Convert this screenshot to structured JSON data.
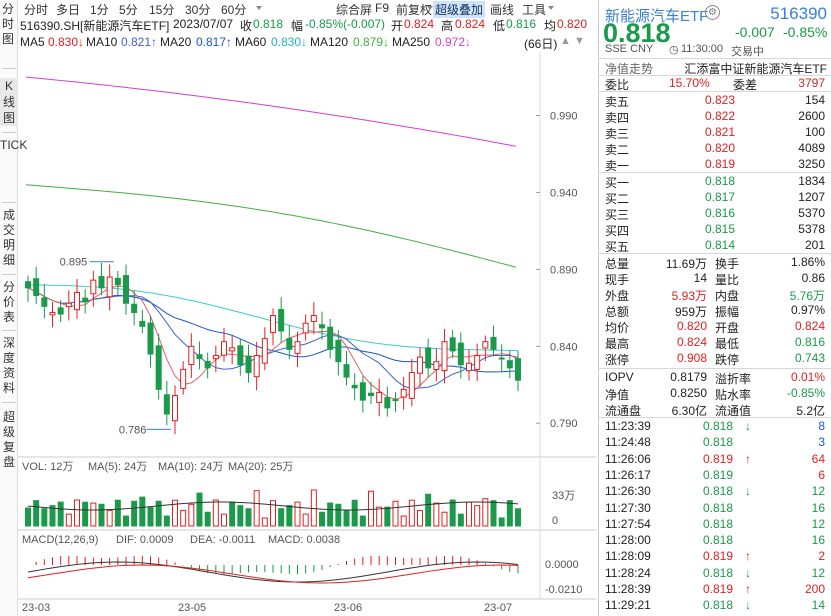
{
  "leftnav": [
    "分时图",
    "K线图",
    "TICK",
    "成交明细",
    "分价表",
    "深度资料",
    "超级复盘"
  ],
  "toolbar": {
    "periods": [
      "分时",
      "多日",
      "1分",
      "5分",
      "15分",
      "30分",
      "60分"
    ],
    "tools": [
      "综合屏",
      "F9",
      "前复权",
      "超级叠加",
      "画线",
      "工具"
    ],
    "active_tool": "超级叠加"
  },
  "info": {
    "symbol": "516390.SH[新能源汽车ETF]",
    "date": "2023/07/07",
    "close_label": "收",
    "close": "0.818",
    "chg_label": "幅",
    "chg": "-0.85%(-0.007)",
    "open_label": "开",
    "open": "0.824",
    "high_label": "高",
    "high": "0.824",
    "low_label": "低",
    "low": "0.816",
    "avg_label": "均",
    "avg": "0.820"
  },
  "ma": {
    "ma5": "MA5",
    "ma5_val": "0.830↓",
    "ma10": "MA10",
    "ma10_val": "0.821↑",
    "ma20": "MA20",
    "ma20_val": "0.817↑",
    "ma60": "MA60",
    "ma60_val": "0.830↓",
    "ma120": "MA120",
    "ma120_val": "0.879↓",
    "ma250": "MA250",
    "ma250_val": "0.972↓",
    "days": "(66日)"
  },
  "price_axis": [
    "0.990",
    "0.940",
    "0.890",
    "0.840",
    "0.790"
  ],
  "price_annotations": {
    "high": "0.895",
    "low": "0.786"
  },
  "vol": {
    "title": "VOL: 12万",
    "ma5": "MA(5): 24万",
    "ma10": "MA(10): 24万",
    "ma20": "MA(20): 25万",
    "axis": [
      "33万",
      "0"
    ]
  },
  "macd": {
    "title": "MACD(12,26,9)",
    "dif": "DIF: 0.0009",
    "dea": "DEA: -0.0011",
    "macd": "MACD: 0.0038",
    "axis": [
      "0.0000",
      "-0.0210"
    ]
  },
  "date_axis": [
    "23-03",
    "23-05",
    "23-06",
    "23-07"
  ],
  "colors": {
    "up": "#e02020",
    "down": "#1a9a4a",
    "ma5": "#e06060",
    "ma10": "#4060d0",
    "ma20": "#1a54c8",
    "ma60": "#40c8d8",
    "ma120": "#40b040",
    "ma250": "#d040d0",
    "accent": "#3b7fd0"
  },
  "quote": {
    "name": "新能源汽车ETF",
    "code": "516390",
    "price": "0.818",
    "change": "-0.007",
    "change_pct": "-0.85%",
    "market": "SSE  CNY",
    "time": "11:30:00",
    "status": "交易中",
    "nav_label": "净值走势",
    "fund_full_name": "汇添富中证新能源汽车ETF",
    "weibi_label": "委比",
    "weibi": "15.70%",
    "weicha_label": "委差",
    "weicha": "3797",
    "asks": [
      {
        "label": "卖五",
        "price": "0.823",
        "vol": "154"
      },
      {
        "label": "卖四",
        "price": "0.822",
        "vol": "2600"
      },
      {
        "label": "卖三",
        "price": "0.821",
        "vol": "100"
      },
      {
        "label": "卖二",
        "price": "0.820",
        "vol": "4089"
      },
      {
        "label": "卖一",
        "price": "0.819",
        "vol": "3250"
      }
    ],
    "bids": [
      {
        "label": "买一",
        "price": "0.818",
        "vol": "1834"
      },
      {
        "label": "买二",
        "price": "0.817",
        "vol": "1207"
      },
      {
        "label": "买三",
        "price": "0.816",
        "vol": "5370"
      },
      {
        "label": "买四",
        "price": "0.815",
        "vol": "5378"
      },
      {
        "label": "买五",
        "price": "0.814",
        "vol": "201"
      }
    ],
    "stats": [
      {
        "l1": "总量",
        "v1": "11.69万",
        "c1": "dark",
        "l2": "换手",
        "v2": "1.86%",
        "c2": "dark"
      },
      {
        "l1": "现手",
        "v1": "14",
        "c1": "dark",
        "l2": "量比",
        "v2": "0.86",
        "c2": "dark"
      },
      {
        "l1": "外盘",
        "v1": "5.93万",
        "c1": "red",
        "l2": "内盘",
        "v2": "5.76万",
        "c2": "green"
      },
      {
        "l1": "总额",
        "v1": "959万",
        "c1": "dark",
        "l2": "振幅",
        "v2": "0.97%",
        "c2": "dark"
      },
      {
        "l1": "均价",
        "v1": "0.820",
        "c1": "red",
        "l2": "开盘",
        "v2": "0.824",
        "c2": "red"
      },
      {
        "l1": "最高",
        "v1": "0.824",
        "c1": "red",
        "l2": "最低",
        "v2": "0.816",
        "c2": "green"
      },
      {
        "l1": "涨停",
        "v1": "0.908",
        "c1": "red",
        "l2": "跌停",
        "v2": "0.743",
        "c2": "green"
      }
    ],
    "stats2": [
      {
        "l1": "IOPV",
        "v1": "0.8179",
        "c1": "dark",
        "l2": "溢折率",
        "v2": "0.01%",
        "c2": "red"
      },
      {
        "l1": "净值",
        "v1": "0.8250",
        "c1": "dark",
        "l2": "贴水率",
        "v2": "-0.85%",
        "c2": "green"
      },
      {
        "l1": "流通盘",
        "v1": "6.30亿",
        "c1": "dark",
        "l2": "流通值",
        "v2": "5.2亿",
        "c2": "dark"
      }
    ],
    "ticks": [
      {
        "time": "11:23:39",
        "price": "0.818",
        "dir": "down",
        "vol": "8",
        "vc": "blue"
      },
      {
        "time": "11:24:48",
        "price": "0.818",
        "dir": "",
        "vol": "3",
        "vc": "blue"
      },
      {
        "time": "11:26:06",
        "price": "0.819",
        "dir": "up",
        "vol": "64",
        "vc": "red"
      },
      {
        "time": "11:26:17",
        "price": "0.819",
        "dir": "",
        "vol": "6",
        "vc": "red"
      },
      {
        "time": "11:26:30",
        "price": "0.818",
        "dir": "down",
        "vol": "12",
        "vc": "green"
      },
      {
        "time": "11:27:30",
        "price": "0.818",
        "dir": "",
        "vol": "16",
        "vc": "green"
      },
      {
        "time": "11:27:54",
        "price": "0.818",
        "dir": "",
        "vol": "12",
        "vc": "green"
      },
      {
        "time": "11:28:00",
        "price": "0.818",
        "dir": "",
        "vol": "16",
        "vc": "green"
      },
      {
        "time": "11:28:09",
        "price": "0.819",
        "dir": "up",
        "vol": "2",
        "vc": "red"
      },
      {
        "time": "11:28:24",
        "price": "0.818",
        "dir": "down",
        "vol": "12",
        "vc": "green"
      },
      {
        "time": "11:28:39",
        "price": "0.819",
        "dir": "up",
        "vol": "200",
        "vc": "red"
      },
      {
        "time": "11:29:21",
        "price": "0.818",
        "dir": "down",
        "vol": "14",
        "vc": "green"
      }
    ]
  }
}
